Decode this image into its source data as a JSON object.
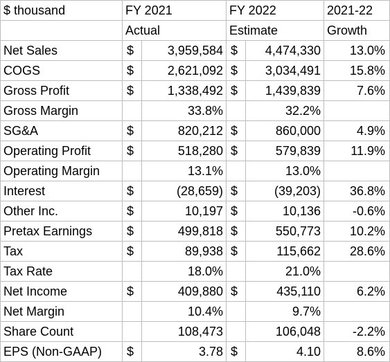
{
  "header": {
    "row1": [
      "$ thousand",
      "FY 2021",
      "FY 2022",
      "2021-22"
    ],
    "row2": [
      "",
      "Actual",
      "Estimate",
      "Growth"
    ]
  },
  "rows": [
    {
      "label": "Net Sales",
      "c1": "$",
      "v1": "3,959,584",
      "c2": "$",
      "v2": "4,474,330",
      "g": "13.0%"
    },
    {
      "label": "COGS",
      "c1": "$",
      "v1": "2,621,092",
      "c2": "$",
      "v2": "3,034,491",
      "g": "15.8%"
    },
    {
      "label": "Gross Profit",
      "c1": "$",
      "v1": "1,338,492",
      "c2": "$",
      "v2": "1,439,839",
      "g": "7.6%"
    },
    {
      "label": "Gross Margin",
      "c1": "",
      "v1": "33.8%",
      "c2": "",
      "v2": "32.2%",
      "g": ""
    },
    {
      "label": "SG&A",
      "c1": "$",
      "v1": "820,212",
      "c2": "$",
      "v2": "860,000",
      "g": "4.9%"
    },
    {
      "label": "Operating Profit",
      "c1": "$",
      "v1": "518,280",
      "c2": "$",
      "v2": "579,839",
      "g": "11.9%"
    },
    {
      "label": "Operating Margin",
      "c1": "",
      "v1": "13.1%",
      "c2": "",
      "v2": "13.0%",
      "g": ""
    },
    {
      "label": "Interest",
      "c1": "$",
      "v1": "(28,659)",
      "c2": "$",
      "v2": "(39,203)",
      "g": "36.8%"
    },
    {
      "label": "Other Inc.",
      "c1": "$",
      "v1": "10,197",
      "c2": "$",
      "v2": "10,136",
      "g": "-0.6%"
    },
    {
      "label": "Pretax Earnings",
      "c1": "$",
      "v1": "499,818",
      "c2": "$",
      "v2": "550,773",
      "g": "10.2%"
    },
    {
      "label": "Tax",
      "c1": "$",
      "v1": "89,938",
      "c2": "$",
      "v2": "115,662",
      "g": "28.6%"
    },
    {
      "label": "Tax Rate",
      "c1": "",
      "v1": "18.0%",
      "c2": "",
      "v2": "21.0%",
      "g": ""
    },
    {
      "label": "Net Income",
      "c1": "$",
      "v1": "409,880",
      "c2": "$",
      "v2": "435,110",
      "g": "6.2%"
    },
    {
      "label": "Net Margin",
      "c1": "",
      "v1": "10.4%",
      "c2": "",
      "v2": "9.7%",
      "g": ""
    },
    {
      "label": "Share Count",
      "c1": "",
      "v1": "108,473",
      "c2": "",
      "v2": "106,048",
      "g": "-2.2%"
    },
    {
      "label": "EPS (Non-GAAP)",
      "c1": "$",
      "v1": "3.78",
      "c2": "$",
      "v2": "4.10",
      "g": "8.6%"
    }
  ]
}
